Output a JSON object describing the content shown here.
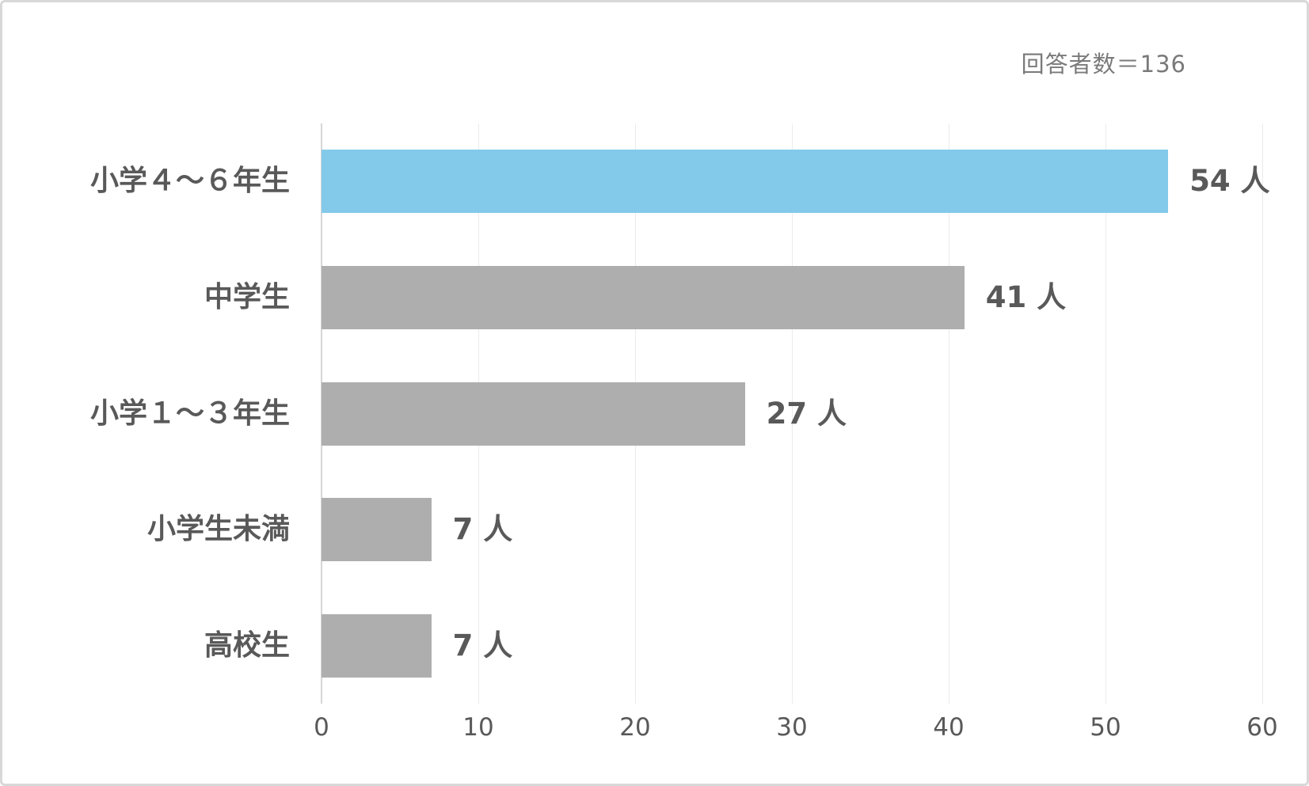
{
  "figure": {
    "respondents_note": "回答者数＝136"
  },
  "chart_data": {
    "type": "bar",
    "orientation": "horizontal",
    "title": "",
    "xlabel": "",
    "ylabel": "",
    "categories": [
      "小学４～６年生",
      "中学生",
      "小学１～３年生",
      "小学生未満",
      "高校生"
    ],
    "values": [
      54,
      41,
      27,
      7,
      7
    ],
    "value_labels": [
      "54 人",
      "41 人",
      "27 人",
      "7 人",
      "7 人"
    ],
    "unit": "人",
    "x_ticks": [
      0,
      10,
      20,
      30,
      40,
      50,
      60
    ],
    "xlim": [
      0,
      60
    ],
    "grid": true,
    "legend": "none",
    "annotation": "回答者数＝136",
    "highlight_index": 0
  },
  "colors": {
    "bar_highlight": "#83C9EA",
    "bar_default": "#AEAEAE",
    "label_text": "#595959",
    "note_text": "#7A7A7A",
    "gridline": "#EBEBEB",
    "axis_line": "#D6D6D6",
    "border": "#D8D8D8",
    "background": "#FFFFFF"
  }
}
